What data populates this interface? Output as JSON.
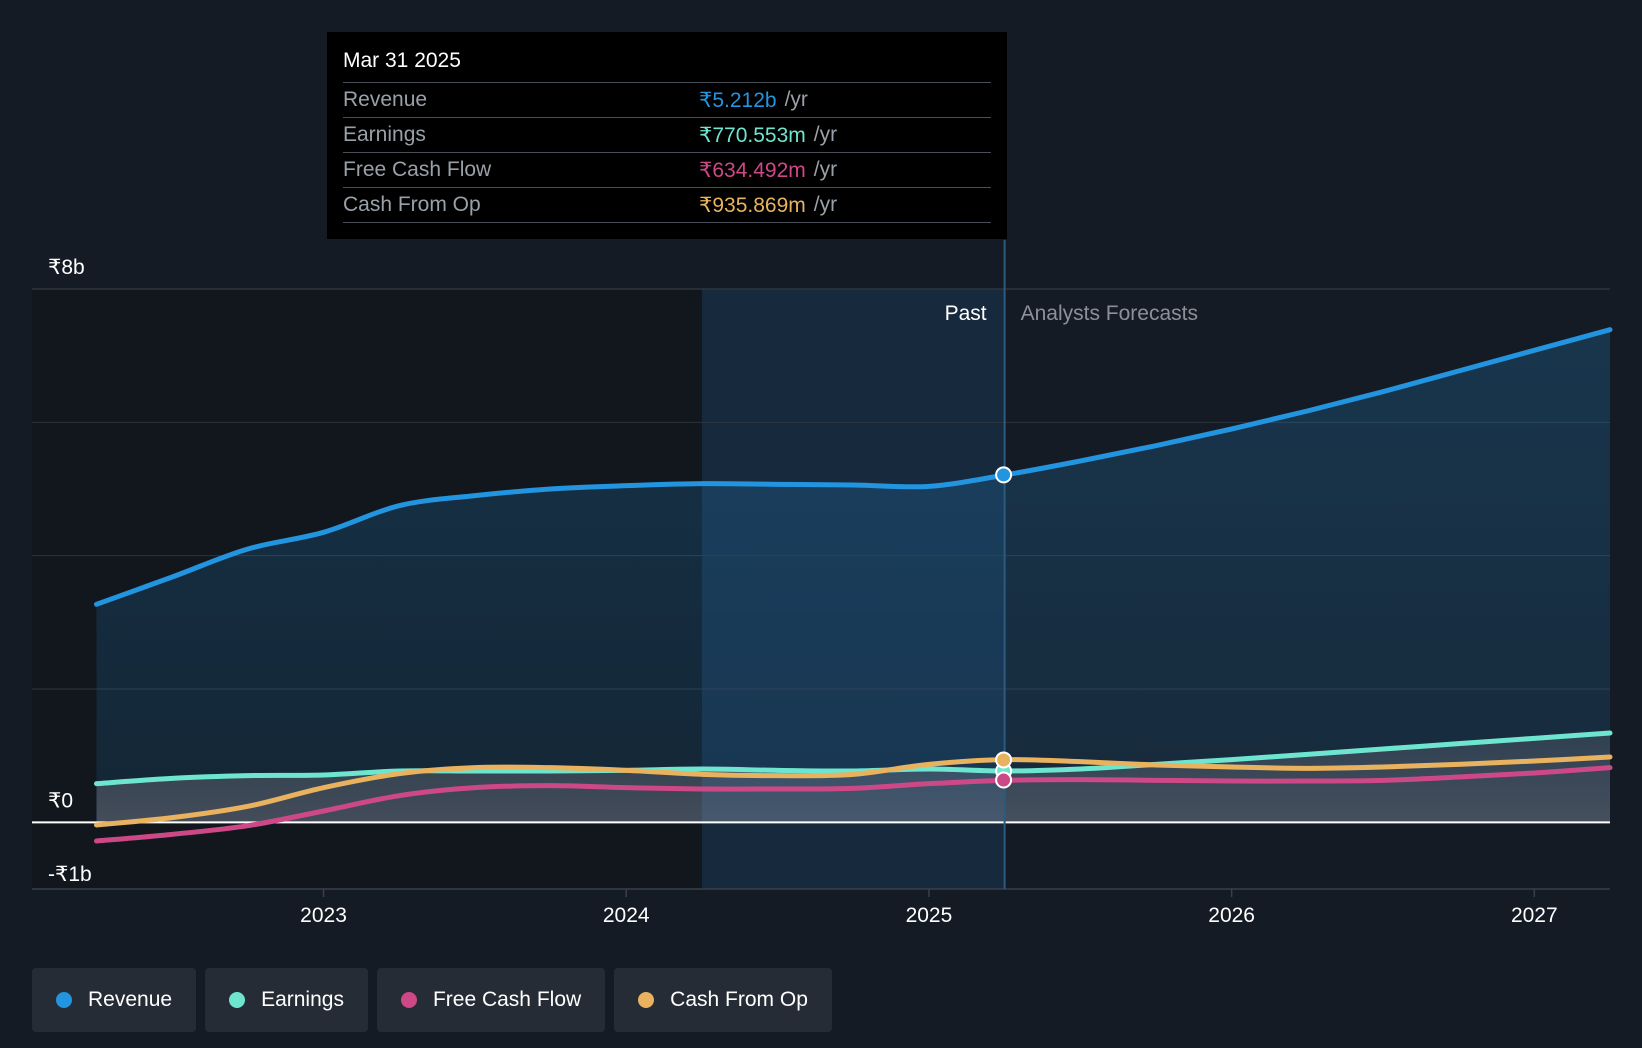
{
  "tooltip": {
    "date": "Mar 31 2025",
    "rows": [
      {
        "label": "Revenue",
        "value": "₹5.212b",
        "unit": "/yr",
        "color": "#2394df"
      },
      {
        "label": "Earnings",
        "value": "₹770.553m",
        "unit": "/yr",
        "color": "#6ee5cf"
      },
      {
        "label": "Free Cash Flow",
        "value": "₹634.492m",
        "unit": "/yr",
        "color": "#cd4887"
      },
      {
        "label": "Cash From Op",
        "value": "₹935.869m",
        "unit": "/yr",
        "color": "#e9b25f"
      }
    ]
  },
  "chart_data": {
    "type": "line",
    "y_labels": [
      {
        "label": "₹8b",
        "value": 8
      },
      {
        "label": "₹0",
        "value": 0
      },
      {
        "label": "-₹1b",
        "value": -1
      }
    ],
    "ylim": [
      -1,
      8
    ],
    "xlim": [
      2022.2,
      2027.25
    ],
    "x_ticks": [
      {
        "label": "2023",
        "value": 2023
      },
      {
        "label": "2024",
        "value": 2024
      },
      {
        "label": "2025",
        "value": 2025
      },
      {
        "label": "2026",
        "value": 2026
      },
      {
        "label": "2027",
        "value": 2027
      }
    ],
    "past_label": "Past",
    "forecast_label": "Analysts Forecasts",
    "divider_x": 2025.25,
    "highlight_start_x": 2024.25,
    "series": [
      {
        "name": "Revenue",
        "color": "#2394df",
        "points": [
          [
            2022.25,
            3.27
          ],
          [
            2022.5,
            3.68
          ],
          [
            2022.75,
            4.1
          ],
          [
            2023.0,
            4.35
          ],
          [
            2023.25,
            4.75
          ],
          [
            2023.5,
            4.9
          ],
          [
            2023.75,
            5.0
          ],
          [
            2024.0,
            5.05
          ],
          [
            2024.25,
            5.08
          ],
          [
            2024.5,
            5.07
          ],
          [
            2024.75,
            5.06
          ],
          [
            2025.0,
            5.04
          ],
          [
            2025.25,
            5.21
          ],
          [
            2025.5,
            5.42
          ],
          [
            2025.75,
            5.65
          ],
          [
            2026.0,
            5.9
          ],
          [
            2026.25,
            6.17
          ],
          [
            2026.5,
            6.46
          ],
          [
            2026.75,
            6.77
          ],
          [
            2027.0,
            7.08
          ],
          [
            2027.25,
            7.39
          ]
        ]
      },
      {
        "name": "Earnings",
        "color": "#6ee5cf",
        "points": [
          [
            2022.25,
            0.58
          ],
          [
            2022.5,
            0.66
          ],
          [
            2022.75,
            0.7
          ],
          [
            2023.0,
            0.71
          ],
          [
            2023.25,
            0.77
          ],
          [
            2023.5,
            0.77
          ],
          [
            2023.75,
            0.77
          ],
          [
            2024.0,
            0.78
          ],
          [
            2024.25,
            0.8
          ],
          [
            2024.5,
            0.78
          ],
          [
            2024.75,
            0.77
          ],
          [
            2025.0,
            0.8
          ],
          [
            2025.25,
            0.77
          ],
          [
            2025.5,
            0.8
          ],
          [
            2025.75,
            0.87
          ],
          [
            2026.0,
            0.94
          ],
          [
            2026.25,
            1.02
          ],
          [
            2026.5,
            1.1
          ],
          [
            2026.75,
            1.18
          ],
          [
            2027.0,
            1.26
          ],
          [
            2027.25,
            1.34
          ]
        ]
      },
      {
        "name": "Free Cash Flow",
        "color": "#cd4887",
        "points": [
          [
            2022.25,
            -0.28
          ],
          [
            2022.5,
            -0.18
          ],
          [
            2022.75,
            -0.05
          ],
          [
            2023.0,
            0.17
          ],
          [
            2023.25,
            0.4
          ],
          [
            2023.5,
            0.52
          ],
          [
            2023.75,
            0.55
          ],
          [
            2024.0,
            0.52
          ],
          [
            2024.25,
            0.5
          ],
          [
            2024.5,
            0.5
          ],
          [
            2024.75,
            0.51
          ],
          [
            2025.0,
            0.58
          ],
          [
            2025.25,
            0.63
          ],
          [
            2025.5,
            0.64
          ],
          [
            2025.75,
            0.63
          ],
          [
            2026.0,
            0.62
          ],
          [
            2026.25,
            0.62
          ],
          [
            2026.5,
            0.63
          ],
          [
            2026.75,
            0.68
          ],
          [
            2027.0,
            0.74
          ],
          [
            2027.25,
            0.82
          ]
        ]
      },
      {
        "name": "Cash From Op",
        "color": "#e9b25f",
        "points": [
          [
            2022.25,
            -0.04
          ],
          [
            2022.5,
            0.07
          ],
          [
            2022.75,
            0.24
          ],
          [
            2023.0,
            0.52
          ],
          [
            2023.25,
            0.73
          ],
          [
            2023.5,
            0.82
          ],
          [
            2023.75,
            0.82
          ],
          [
            2024.0,
            0.78
          ],
          [
            2024.25,
            0.72
          ],
          [
            2024.5,
            0.7
          ],
          [
            2024.75,
            0.72
          ],
          [
            2025.0,
            0.87
          ],
          [
            2025.25,
            0.94
          ],
          [
            2025.5,
            0.91
          ],
          [
            2025.75,
            0.86
          ],
          [
            2026.0,
            0.83
          ],
          [
            2026.25,
            0.81
          ],
          [
            2026.5,
            0.83
          ],
          [
            2026.75,
            0.87
          ],
          [
            2027.0,
            0.92
          ],
          [
            2027.25,
            0.98
          ]
        ]
      }
    ],
    "highlight_values": [
      5.212,
      0.770553,
      0.634492,
      0.935869
    ]
  },
  "legend": [
    {
      "label": "Revenue",
      "color": "#2394df"
    },
    {
      "label": "Earnings",
      "color": "#6ee5cf"
    },
    {
      "label": "Free Cash Flow",
      "color": "#cd4887"
    },
    {
      "label": "Cash From Op",
      "color": "#e9b25f"
    }
  ]
}
